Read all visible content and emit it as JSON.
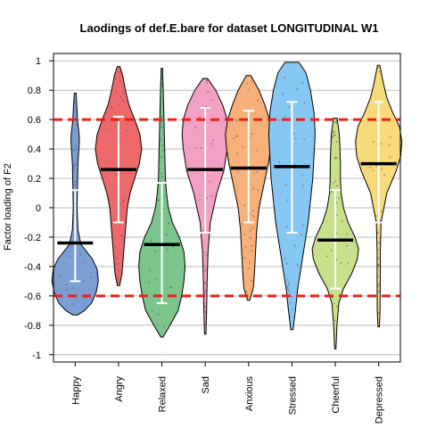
{
  "chart_data": {
    "type": "violin",
    "title": "Laodings of def.E.bare for dataset LONGITUDINAL W1",
    "ylabel": "Factor loading of F2",
    "xlabel": "",
    "ylim": [
      -1.05,
      1.05
    ],
    "yticks": [
      -1,
      -0.8,
      -0.6,
      -0.4,
      -0.2,
      0,
      0.2,
      0.4,
      0.6,
      0.8,
      1
    ],
    "ytick_labels": [
      "-1",
      "-0.8",
      "-0.6",
      "-0.4",
      "-0.2",
      "0",
      "0.2",
      "0.4",
      "0.6",
      "0.8",
      "1"
    ],
    "grid": "horizontal",
    "reference_lines": [
      0.6,
      -0.6
    ],
    "reference_line_color": "#e8201a",
    "categories": [
      "Happy",
      "Angry",
      "Relaxed",
      "Sad",
      "Anxious",
      "Stressed",
      "Cheerful",
      "Depressed"
    ],
    "series": [
      {
        "category": "Happy",
        "color": "#7b9fd4",
        "median": -0.24,
        "range": [
          -0.73,
          0.78
        ],
        "ci": [
          -0.5,
          0.12
        ],
        "density": [
          [
            -0.73,
            0.1
          ],
          [
            -0.7,
            0.4
          ],
          [
            -0.65,
            0.7
          ],
          [
            -0.58,
            0.9
          ],
          [
            -0.5,
            1.0
          ],
          [
            -0.42,
            0.95
          ],
          [
            -0.35,
            0.75
          ],
          [
            -0.3,
            0.5
          ],
          [
            -0.25,
            0.25
          ],
          [
            -0.15,
            0.12
          ],
          [
            0,
            0.08
          ],
          [
            0.15,
            0.1
          ],
          [
            0.3,
            0.12
          ],
          [
            0.45,
            0.18
          ],
          [
            0.5,
            0.17
          ],
          [
            0.6,
            0.1
          ],
          [
            0.7,
            0.07
          ],
          [
            0.78,
            0.04
          ]
        ]
      },
      {
        "category": "Angry",
        "color": "#ee6a6a",
        "median": 0.26,
        "range": [
          -0.53,
          0.96
        ],
        "ci": [
          -0.1,
          0.62
        ],
        "density": [
          [
            -0.53,
            0.05
          ],
          [
            -0.45,
            0.15
          ],
          [
            -0.35,
            0.2
          ],
          [
            -0.25,
            0.25
          ],
          [
            -0.15,
            0.3
          ],
          [
            0,
            0.38
          ],
          [
            0.1,
            0.5
          ],
          [
            0.2,
            0.7
          ],
          [
            0.3,
            0.9
          ],
          [
            0.4,
            1.0
          ],
          [
            0.5,
            0.92
          ],
          [
            0.6,
            0.7
          ],
          [
            0.7,
            0.45
          ],
          [
            0.8,
            0.3
          ],
          [
            0.9,
            0.18
          ],
          [
            0.96,
            0.06
          ]
        ]
      },
      {
        "category": "Relaxed",
        "color": "#7bc48c",
        "median": -0.25,
        "range": [
          -0.88,
          0.95
        ],
        "ci": [
          -0.65,
          0.17
        ],
        "density": [
          [
            -0.88,
            0.05
          ],
          [
            -0.8,
            0.35
          ],
          [
            -0.7,
            0.7
          ],
          [
            -0.6,
            0.85
          ],
          [
            -0.5,
            0.95
          ],
          [
            -0.4,
            1.0
          ],
          [
            -0.3,
            0.95
          ],
          [
            -0.2,
            0.75
          ],
          [
            -0.1,
            0.45
          ],
          [
            0,
            0.28
          ],
          [
            0.1,
            0.2
          ],
          [
            0.2,
            0.15
          ],
          [
            0.4,
            0.12
          ],
          [
            0.6,
            0.09
          ],
          [
            0.8,
            0.06
          ],
          [
            0.95,
            0.03
          ]
        ]
      },
      {
        "category": "Sad",
        "color": "#f4a0c4",
        "median": 0.26,
        "range": [
          -0.86,
          0.88
        ],
        "ci": [
          -0.17,
          0.68
        ],
        "density": [
          [
            -0.86,
            0.03
          ],
          [
            -0.7,
            0.06
          ],
          [
            -0.5,
            0.08
          ],
          [
            -0.3,
            0.12
          ],
          [
            -0.1,
            0.22
          ],
          [
            0.1,
            0.5
          ],
          [
            0.25,
            0.8
          ],
          [
            0.4,
            0.95
          ],
          [
            0.5,
            1.0
          ],
          [
            0.6,
            0.95
          ],
          [
            0.7,
            0.75
          ],
          [
            0.8,
            0.45
          ],
          [
            0.88,
            0.1
          ]
        ]
      },
      {
        "category": "Anxious",
        "color": "#f7b07a",
        "median": 0.27,
        "range": [
          -0.63,
          0.9
        ],
        "ci": [
          -0.1,
          0.66
        ],
        "density": [
          [
            -0.63,
            0.05
          ],
          [
            -0.55,
            0.2
          ],
          [
            -0.45,
            0.25
          ],
          [
            -0.3,
            0.3
          ],
          [
            -0.15,
            0.35
          ],
          [
            0,
            0.45
          ],
          [
            0.15,
            0.65
          ],
          [
            0.3,
            0.85
          ],
          [
            0.4,
            0.95
          ],
          [
            0.5,
            1.0
          ],
          [
            0.6,
            0.9
          ],
          [
            0.7,
            0.7
          ],
          [
            0.8,
            0.45
          ],
          [
            0.9,
            0.1
          ]
        ]
      },
      {
        "category": "Stressed",
        "color": "#86c7f3",
        "median": 0.28,
        "range": [
          -0.83,
          0.99
        ],
        "ci": [
          -0.17,
          0.72
        ],
        "density": [
          [
            -0.83,
            0.05
          ],
          [
            -0.7,
            0.15
          ],
          [
            -0.55,
            0.25
          ],
          [
            -0.4,
            0.4
          ],
          [
            -0.25,
            0.55
          ],
          [
            -0.1,
            0.7
          ],
          [
            0.05,
            0.8
          ],
          [
            0.2,
            0.9
          ],
          [
            0.35,
            0.95
          ],
          [
            0.5,
            1.0
          ],
          [
            0.65,
            0.95
          ],
          [
            0.8,
            0.8
          ],
          [
            0.92,
            0.6
          ],
          [
            0.99,
            0.3
          ]
        ]
      },
      {
        "category": "Cheerful",
        "color": "#c9e08a",
        "median": -0.22,
        "range": [
          -0.96,
          0.61
        ],
        "ci": [
          -0.55,
          0.12
        ],
        "density": [
          [
            -0.96,
            0.03
          ],
          [
            -0.8,
            0.07
          ],
          [
            -0.65,
            0.15
          ],
          [
            -0.55,
            0.35
          ],
          [
            -0.45,
            0.7
          ],
          [
            -0.35,
            0.95
          ],
          [
            -0.28,
            1.0
          ],
          [
            -0.2,
            0.85
          ],
          [
            -0.1,
            0.55
          ],
          [
            0,
            0.35
          ],
          [
            0.1,
            0.25
          ],
          [
            0.2,
            0.22
          ],
          [
            0.3,
            0.22
          ],
          [
            0.4,
            0.2
          ],
          [
            0.5,
            0.17
          ],
          [
            0.61,
            0.08
          ]
        ]
      },
      {
        "category": "Depressed",
        "color": "#f9da7a",
        "median": 0.3,
        "range": [
          -0.81,
          0.97
        ],
        "ci": [
          -0.1,
          0.72
        ],
        "density": [
          [
            -0.81,
            0.03
          ],
          [
            -0.7,
            0.06
          ],
          [
            -0.5,
            0.07
          ],
          [
            -0.3,
            0.07
          ],
          [
            -0.1,
            0.1
          ],
          [
            0.1,
            0.35
          ],
          [
            0.25,
            0.75
          ],
          [
            0.35,
            0.95
          ],
          [
            0.45,
            1.0
          ],
          [
            0.55,
            0.9
          ],
          [
            0.65,
            0.6
          ],
          [
            0.75,
            0.35
          ],
          [
            0.85,
            0.2
          ],
          [
            0.97,
            0.05
          ]
        ]
      }
    ]
  }
}
